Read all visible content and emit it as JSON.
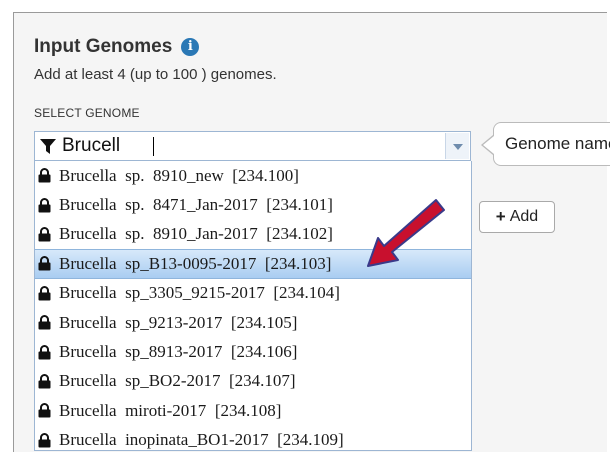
{
  "panel": {
    "title": "Input Genomes",
    "subtitle": "Add at least 4 (up to 100 ) genomes.",
    "select_label": "SELECT GENOME"
  },
  "search": {
    "value": "Brucell"
  },
  "tooltip": {
    "text": "Genome name"
  },
  "add_button": {
    "label": "Add"
  },
  "dropdown": {
    "highlighted_index": 3,
    "options": [
      {
        "name": "Brucella  sp.  8910_new",
        "id": "[234.100]"
      },
      {
        "name": "Brucella  sp.  8471_Jan-2017",
        "id": "[234.101]"
      },
      {
        "name": "Brucella  sp.  8910_Jan-2017",
        "id": "[234.102]"
      },
      {
        "name": "Brucella  sp_B13-0095-2017",
        "id": "[234.103]"
      },
      {
        "name": "Brucella  sp_3305_9215-2017",
        "id": "[234.104]"
      },
      {
        "name": "Brucella  sp_9213-2017",
        "id": "[234.105]"
      },
      {
        "name": "Brucella  sp_8913-2017",
        "id": "[234.106]"
      },
      {
        "name": "Brucella  sp_BO2-2017",
        "id": "[234.107]"
      },
      {
        "name": "Brucella  miroti-2017",
        "id": "[234.108]"
      },
      {
        "name": "Brucella  inopinata_BO1-2017",
        "id": "[234.109]"
      }
    ]
  },
  "colors": {
    "panel_bg": "#f5f5f5",
    "info_icon": "#2a78b5",
    "highlight": "#a9cdf1",
    "arrow": "#c8102e"
  }
}
